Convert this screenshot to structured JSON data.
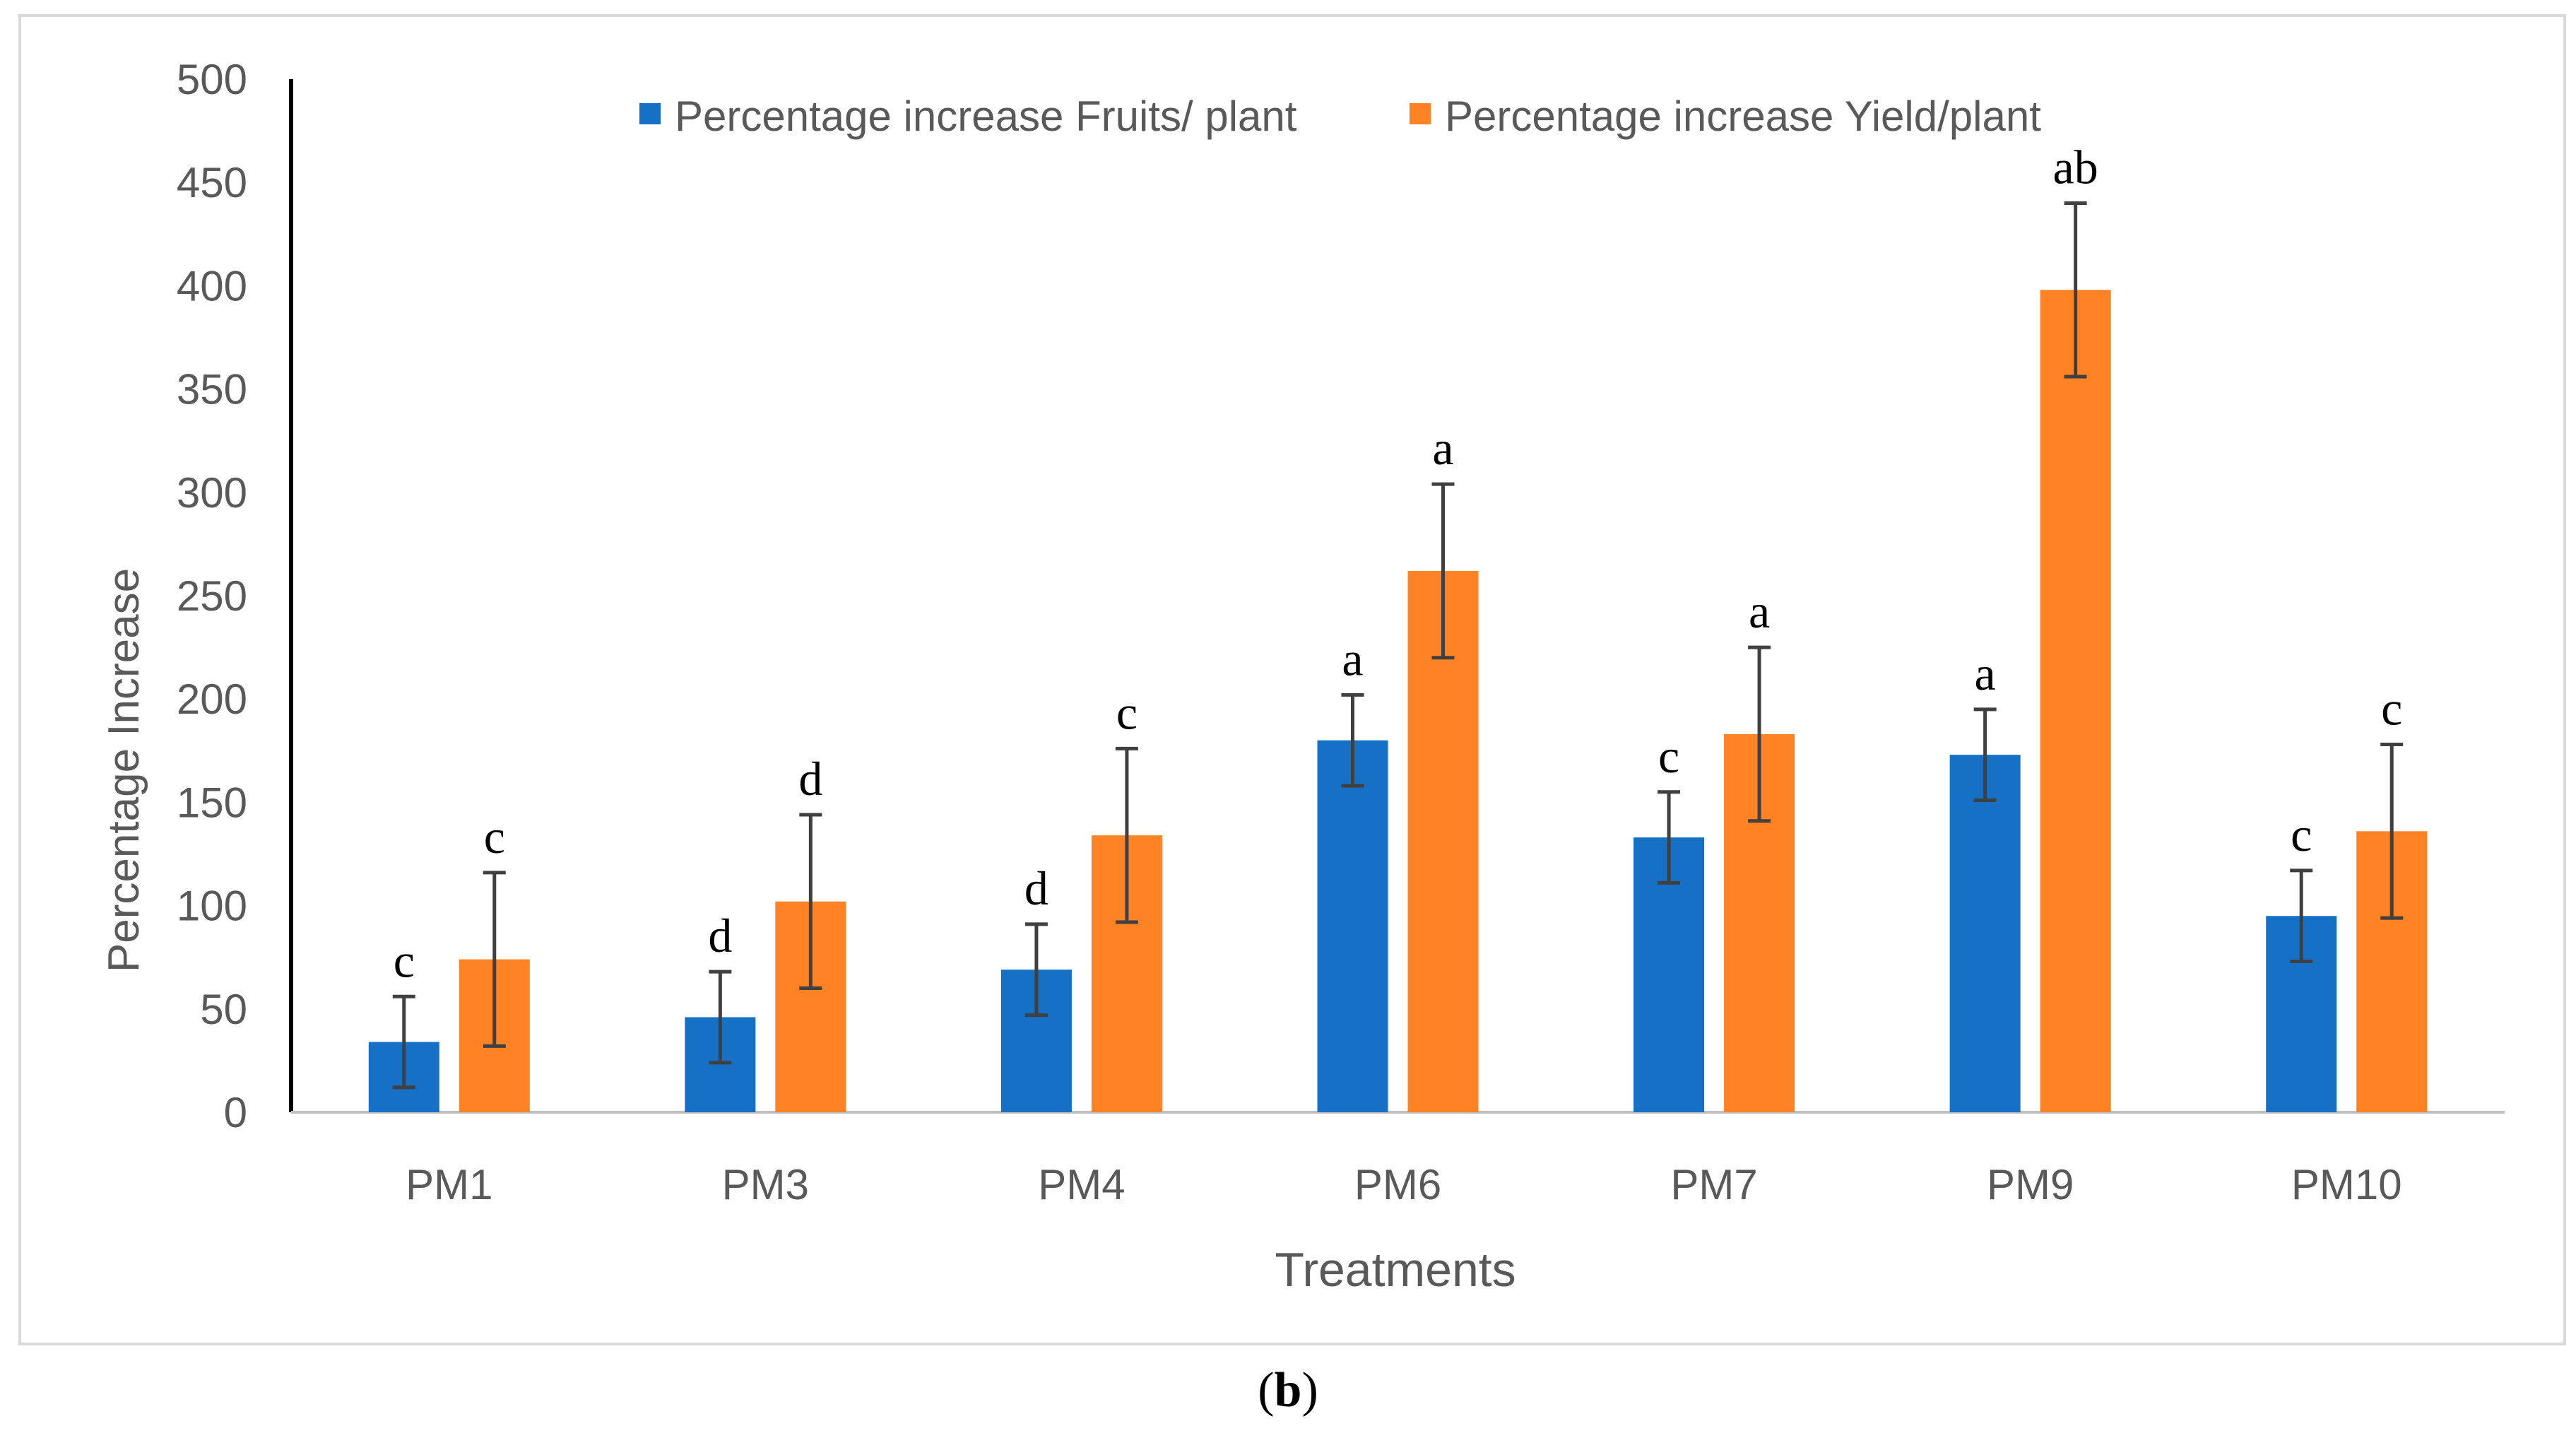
{
  "figure_label": "(b)",
  "figure_label_parts": {
    "open": "(",
    "letter": "b",
    "close": ")"
  },
  "chart_data": {
    "type": "bar",
    "title": "",
    "xlabel": "Treatments",
    "ylabel": "Percentage Increase",
    "ylim": [
      0,
      500
    ],
    "yticks": [
      0,
      50,
      100,
      150,
      200,
      250,
      300,
      350,
      400,
      450,
      500
    ],
    "categories": [
      "PM1",
      "PM3",
      "PM4",
      "PM6",
      "PM7",
      "PM9",
      "PM10"
    ],
    "series": [
      {
        "name": "Percentage increase Fruits/ plant",
        "color": "#1570C6",
        "values": [
          34,
          46,
          69,
          180,
          133,
          173,
          95
        ],
        "error": [
          22,
          22,
          22,
          22,
          22,
          22,
          22
        ],
        "letters": [
          "c",
          "d",
          "d",
          "a",
          "c",
          "a",
          "c"
        ]
      },
      {
        "name": "Percentage increase Yield/plant",
        "color": "#FF8225",
        "values": [
          74,
          102,
          134,
          262,
          183,
          398,
          136
        ],
        "error": [
          42,
          42,
          42,
          42,
          42,
          42,
          42
        ],
        "letters": [
          "c",
          "d",
          "c",
          "a",
          "a",
          "ab",
          "c"
        ]
      }
    ],
    "legend_position": "top",
    "grid": false
  }
}
